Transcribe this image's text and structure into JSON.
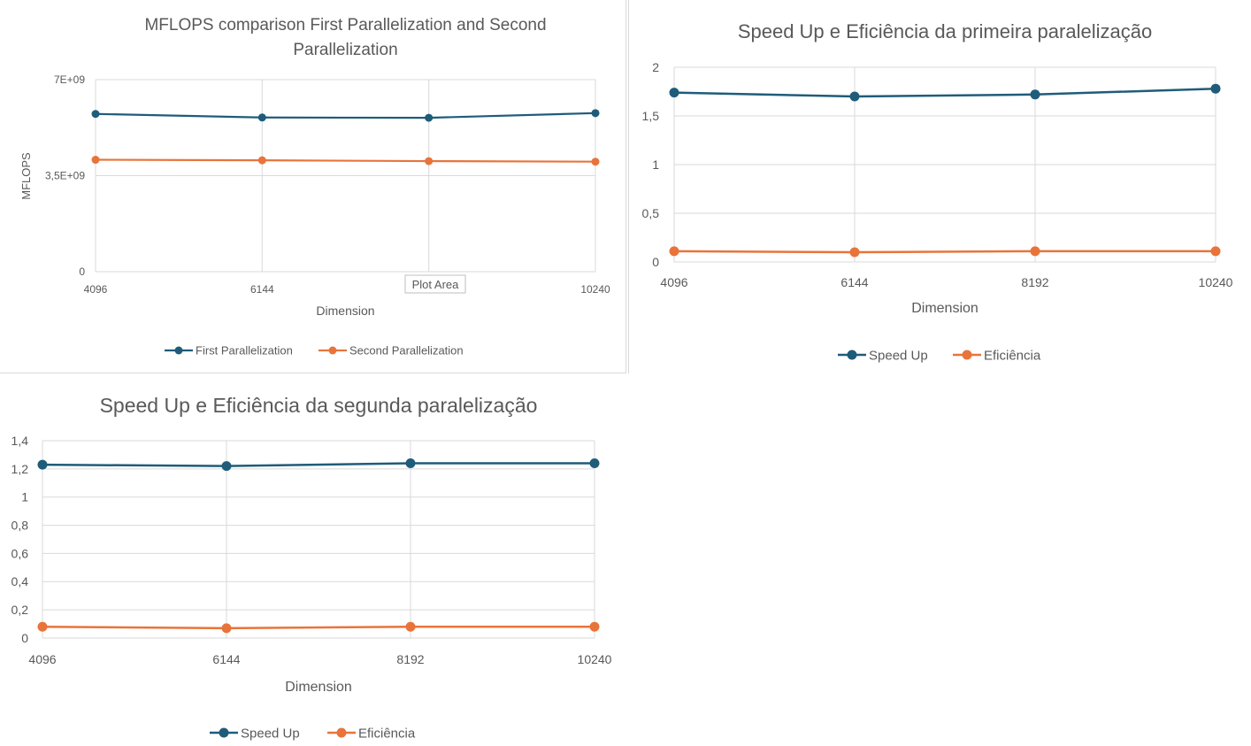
{
  "charts": [
    {
      "id": "chart1",
      "tooltip": "Plot Area",
      "chart_data": {
        "type": "line",
        "title_lines": [
          "MFLOPS comparison First Parallelization and Second",
          "Parallelization"
        ],
        "xlabel": "Dimension",
        "ylabel": "MFLOPS",
        "categories": [
          "4096",
          "6144",
          "8192",
          "10240"
        ],
        "ylim": [
          0,
          7000000000
        ],
        "yticks": [
          {
            "value": 0,
            "label": "0"
          },
          {
            "value": 3500000000,
            "label": "3,5E+09"
          },
          {
            "value": 7000000000,
            "label": "7E+09"
          }
        ],
        "grid": true,
        "legend": "bottom",
        "series": [
          {
            "name": "First Parallelization",
            "color": "#1f5c7a",
            "values": [
              5750000000,
              5620000000,
              5610000000,
              5780000000
            ]
          },
          {
            "name": "Second Parallelization",
            "color": "#e8743b",
            "values": [
              4080000000,
              4060000000,
              4030000000,
              4010000000
            ]
          }
        ]
      }
    },
    {
      "id": "chart2",
      "chart_data": {
        "type": "line",
        "title_lines": [
          "Speed Up e Eficiência da primeira paralelização"
        ],
        "xlabel": "Dimension",
        "ylabel": "",
        "categories": [
          "4096",
          "6144",
          "8192",
          "10240"
        ],
        "ylim": [
          0,
          2
        ],
        "yticks": [
          {
            "value": 0,
            "label": "0"
          },
          {
            "value": 0.5,
            "label": "0,5"
          },
          {
            "value": 1,
            "label": "1"
          },
          {
            "value": 1.5,
            "label": "1,5"
          },
          {
            "value": 2,
            "label": "2"
          }
        ],
        "grid": true,
        "legend": "bottom",
        "series": [
          {
            "name": "Speed Up",
            "color": "#1f5c7a",
            "values": [
              1.74,
              1.7,
              1.72,
              1.78
            ]
          },
          {
            "name": "Eficiência",
            "color": "#e8743b",
            "values": [
              0.11,
              0.1,
              0.11,
              0.11
            ]
          }
        ]
      }
    },
    {
      "id": "chart3",
      "chart_data": {
        "type": "line",
        "title_lines": [
          "Speed Up e Eficiência da segunda paralelização"
        ],
        "xlabel": "Dimension",
        "ylabel": "",
        "categories": [
          "4096",
          "6144",
          "8192",
          "10240"
        ],
        "ylim": [
          0,
          1.4
        ],
        "yticks": [
          {
            "value": 0,
            "label": "0"
          },
          {
            "value": 0.2,
            "label": "0,2"
          },
          {
            "value": 0.4,
            "label": "0,4"
          },
          {
            "value": 0.6,
            "label": "0,6"
          },
          {
            "value": 0.8,
            "label": "0,8"
          },
          {
            "value": 1,
            "label": "1"
          },
          {
            "value": 1.2,
            "label": "1,2"
          },
          {
            "value": 1.4,
            "label": "1,4"
          }
        ],
        "grid": true,
        "legend": "bottom",
        "series": [
          {
            "name": "Speed Up",
            "color": "#1f5c7a",
            "values": [
              1.23,
              1.22,
              1.24,
              1.24
            ]
          },
          {
            "name": "Eficiência",
            "color": "#e8743b",
            "values": [
              0.08,
              0.07,
              0.08,
              0.08
            ]
          }
        ]
      }
    }
  ]
}
